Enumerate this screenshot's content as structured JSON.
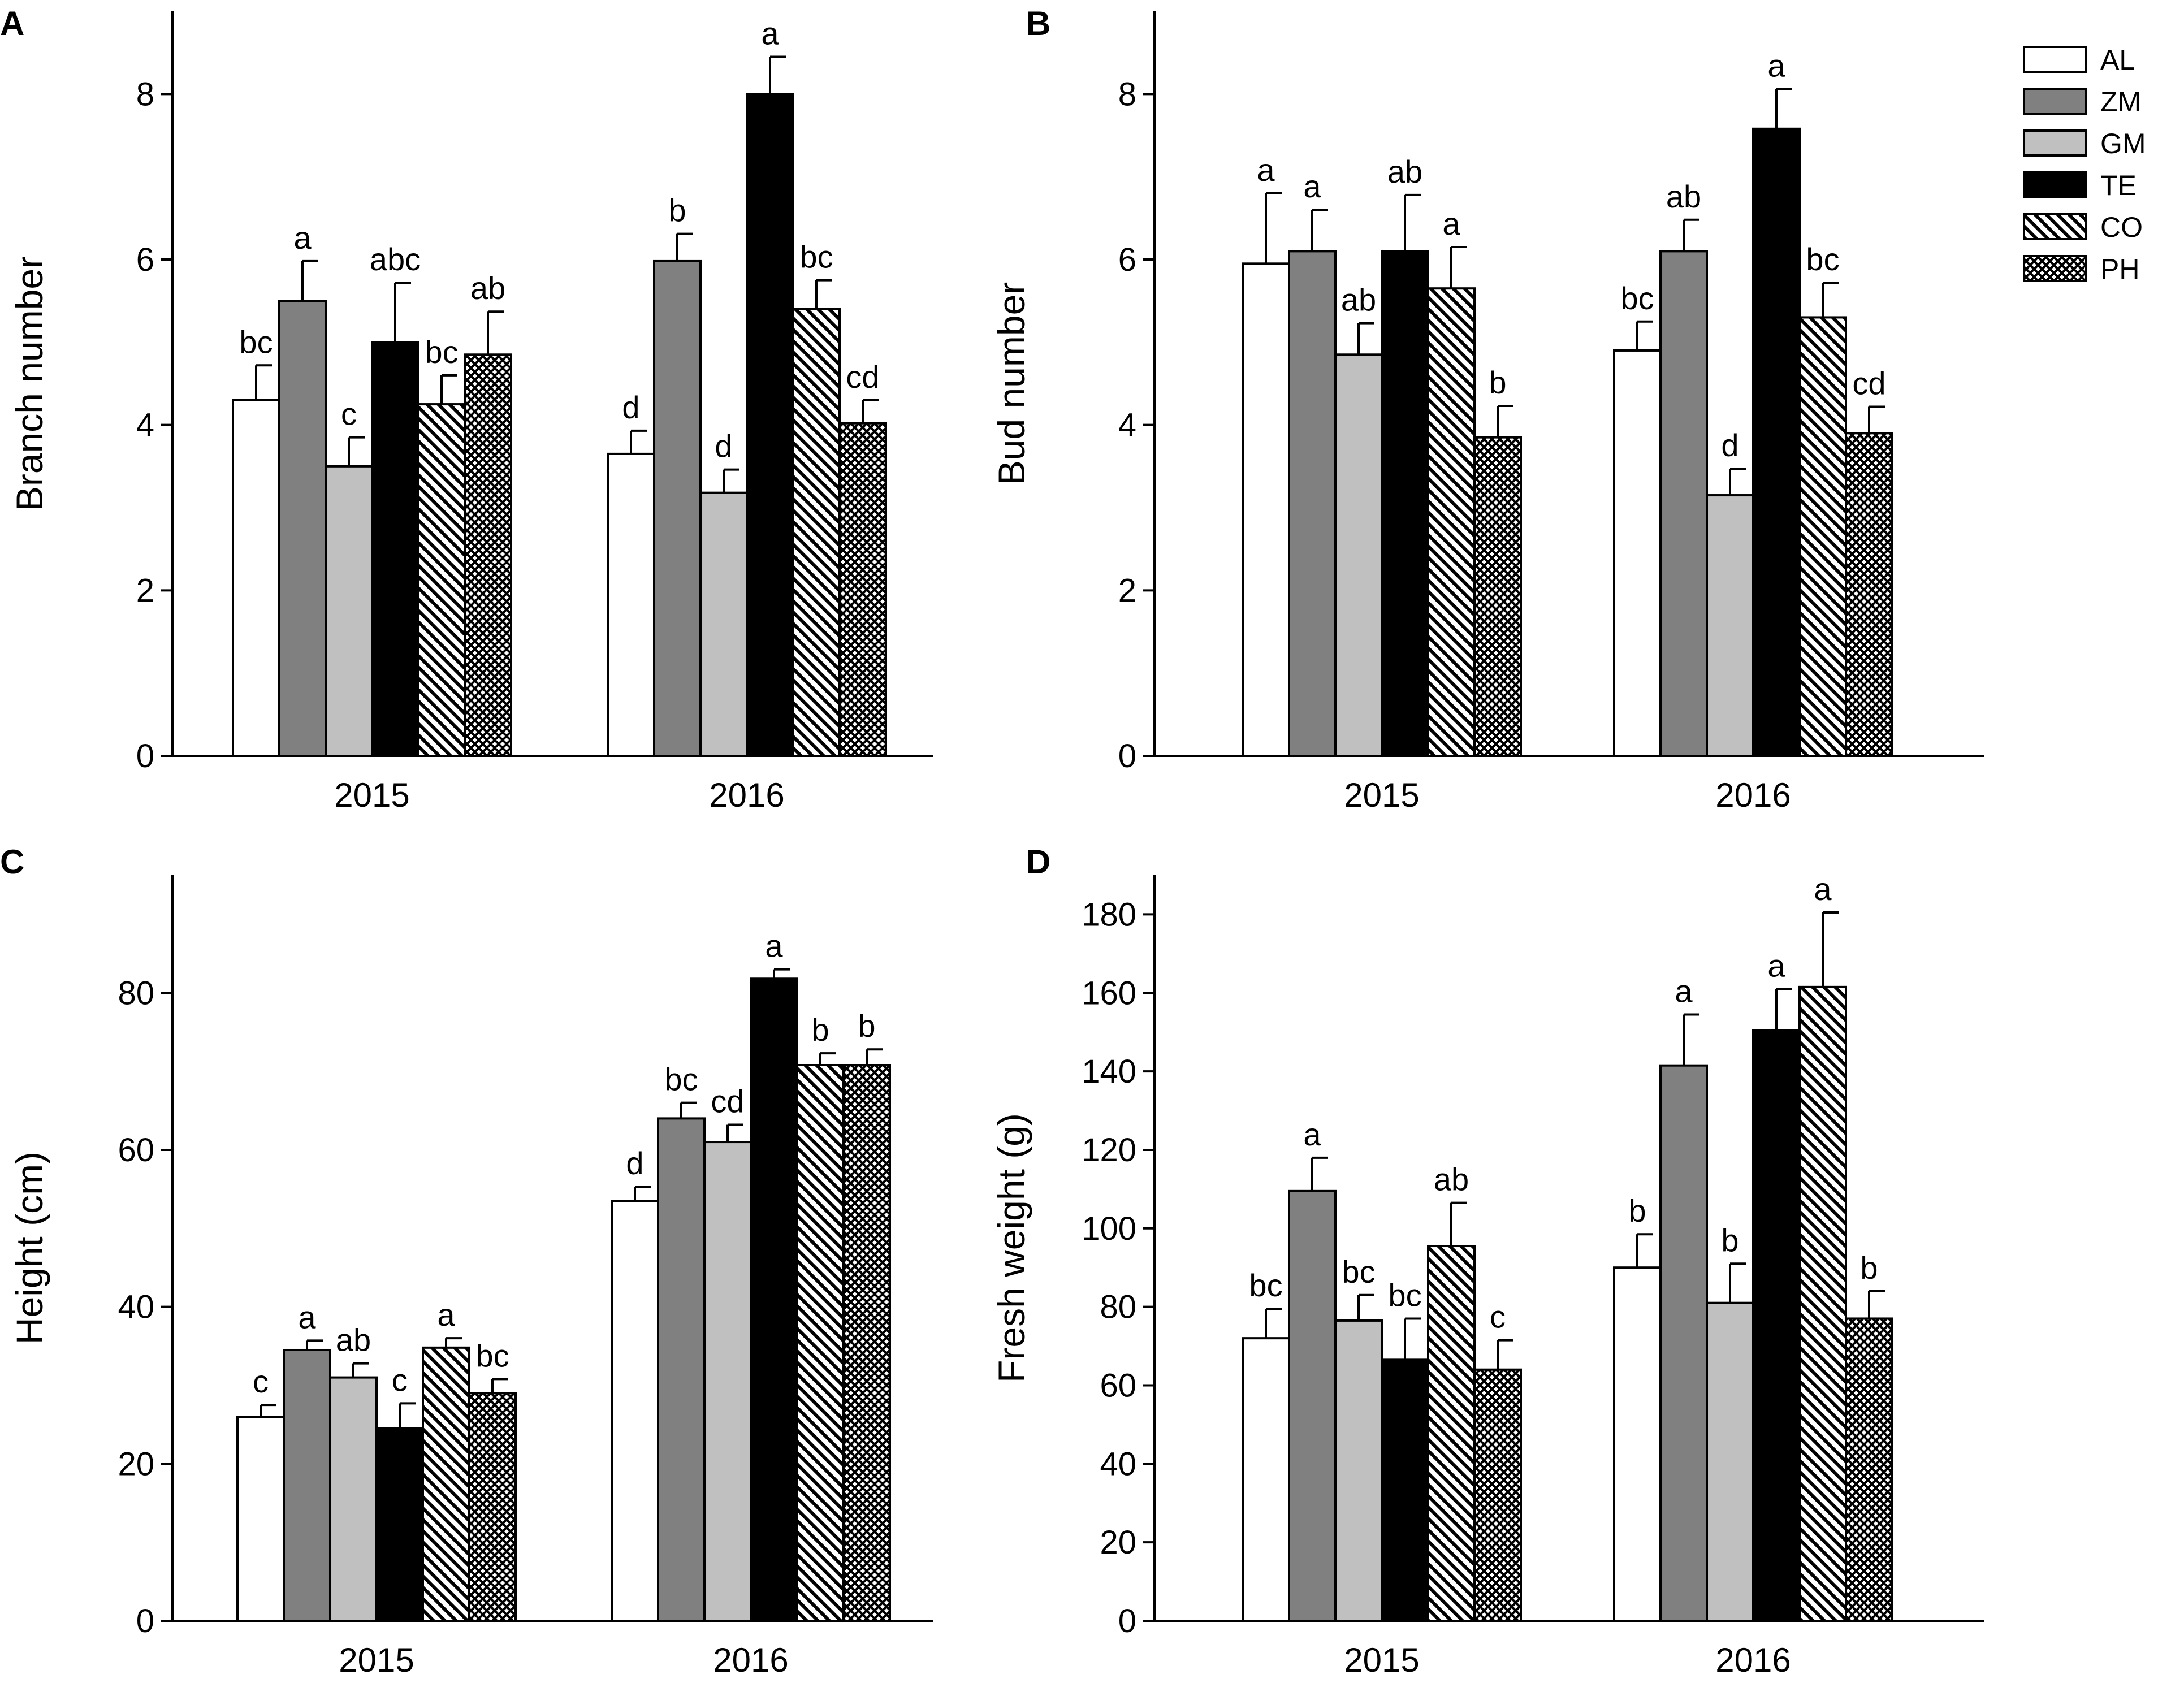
{
  "series": [
    {
      "key": "AL",
      "name": "AL",
      "fill": "#ffffff",
      "pattern": "none"
    },
    {
      "key": "ZM",
      "name": "ZM",
      "fill": "#808080",
      "pattern": "none"
    },
    {
      "key": "GM",
      "name": "GM",
      "fill": "#c0c0c0",
      "pattern": "none"
    },
    {
      "key": "TE",
      "name": "TE",
      "fill": "#000000",
      "pattern": "none"
    },
    {
      "key": "CO",
      "name": "CO",
      "fill": "#ffffff",
      "pattern": "diagonal"
    },
    {
      "key": "PH",
      "name": "PH",
      "fill": "#ffffff",
      "pattern": "crosshatch"
    }
  ],
  "chart_data": [
    {
      "id": "A",
      "panel": "A",
      "type": "bar",
      "ylabel": "Branch number",
      "ylim": [
        0,
        9
      ],
      "yticks": [
        0,
        2,
        4,
        6,
        8
      ],
      "categories": [
        "2015",
        "2016"
      ],
      "values": [
        [
          4.3,
          5.5,
          3.5,
          5.0,
          4.25,
          4.85
        ],
        [
          3.65,
          5.98,
          3.18,
          8.0,
          5.4,
          4.02
        ]
      ],
      "errors": [
        [
          0.42,
          0.48,
          0.35,
          0.72,
          0.35,
          0.52
        ],
        [
          0.28,
          0.33,
          0.28,
          0.45,
          0.35,
          0.28
        ]
      ],
      "letters": [
        [
          "bc",
          "a",
          "c",
          "abc",
          "bc",
          "ab"
        ],
        [
          "d",
          "b",
          "d",
          "a",
          "bc",
          "cd"
        ]
      ]
    },
    {
      "id": "B",
      "panel": "B",
      "type": "bar",
      "ylabel": "Bud number",
      "ylim": [
        0,
        9
      ],
      "yticks": [
        0,
        2,
        4,
        6,
        8
      ],
      "categories": [
        "2015",
        "2016"
      ],
      "values": [
        [
          5.95,
          6.1,
          4.85,
          6.1,
          5.65,
          3.85
        ],
        [
          4.9,
          6.1,
          3.15,
          7.58,
          5.3,
          3.9
        ]
      ],
      "errors": [
        [
          0.85,
          0.5,
          0.38,
          0.68,
          0.5,
          0.38
        ],
        [
          0.35,
          0.38,
          0.32,
          0.48,
          0.42,
          0.32
        ]
      ],
      "letters": [
        [
          "a",
          "a",
          "ab",
          "ab",
          "a",
          "b"
        ],
        [
          "bc",
          "ab",
          "d",
          "a",
          "bc",
          "cd"
        ]
      ]
    },
    {
      "id": "C",
      "panel": "C",
      "type": "bar",
      "ylabel": "Height (cm)",
      "ylim": [
        0,
        95
      ],
      "yticks": [
        0,
        20,
        40,
        60,
        80
      ],
      "categories": [
        "2015",
        "2016"
      ],
      "values": [
        [
          26.0,
          34.5,
          31.0,
          24.5,
          34.8,
          29.0
        ],
        [
          53.5,
          64.0,
          61.0,
          81.8,
          70.8,
          70.8
        ]
      ],
      "errors": [
        [
          1.5,
          1.2,
          1.8,
          3.2,
          1.2,
          1.8
        ],
        [
          1.8,
          2.0,
          2.2,
          1.2,
          1.5,
          2.0
        ]
      ],
      "letters": [
        [
          "c",
          "a",
          "ab",
          "c",
          "a",
          "bc"
        ],
        [
          "d",
          "bc",
          "cd",
          "a",
          "b",
          "b"
        ]
      ]
    },
    {
      "id": "D",
      "panel": "D",
      "type": "bar",
      "ylabel": "Fresh weight (g)",
      "ylim": [
        0,
        190
      ],
      "yticks": [
        0,
        20,
        40,
        60,
        80,
        100,
        120,
        140,
        160,
        180
      ],
      "categories": [
        "2015",
        "2016"
      ],
      "values": [
        [
          72,
          109.5,
          76.5,
          66.5,
          95.5,
          64
        ],
        [
          90,
          141.5,
          81,
          150.5,
          161.5,
          77
        ]
      ],
      "errors": [
        [
          7.5,
          8.5,
          6.5,
          10.5,
          11,
          7.5
        ],
        [
          8.5,
          13,
          10,
          10.5,
          19,
          7
        ]
      ],
      "letters": [
        [
          "bc",
          "a",
          "bc",
          "bc",
          "ab",
          "c"
        ],
        [
          "b",
          "a",
          "b",
          "a",
          "a",
          "b"
        ]
      ]
    }
  ]
}
